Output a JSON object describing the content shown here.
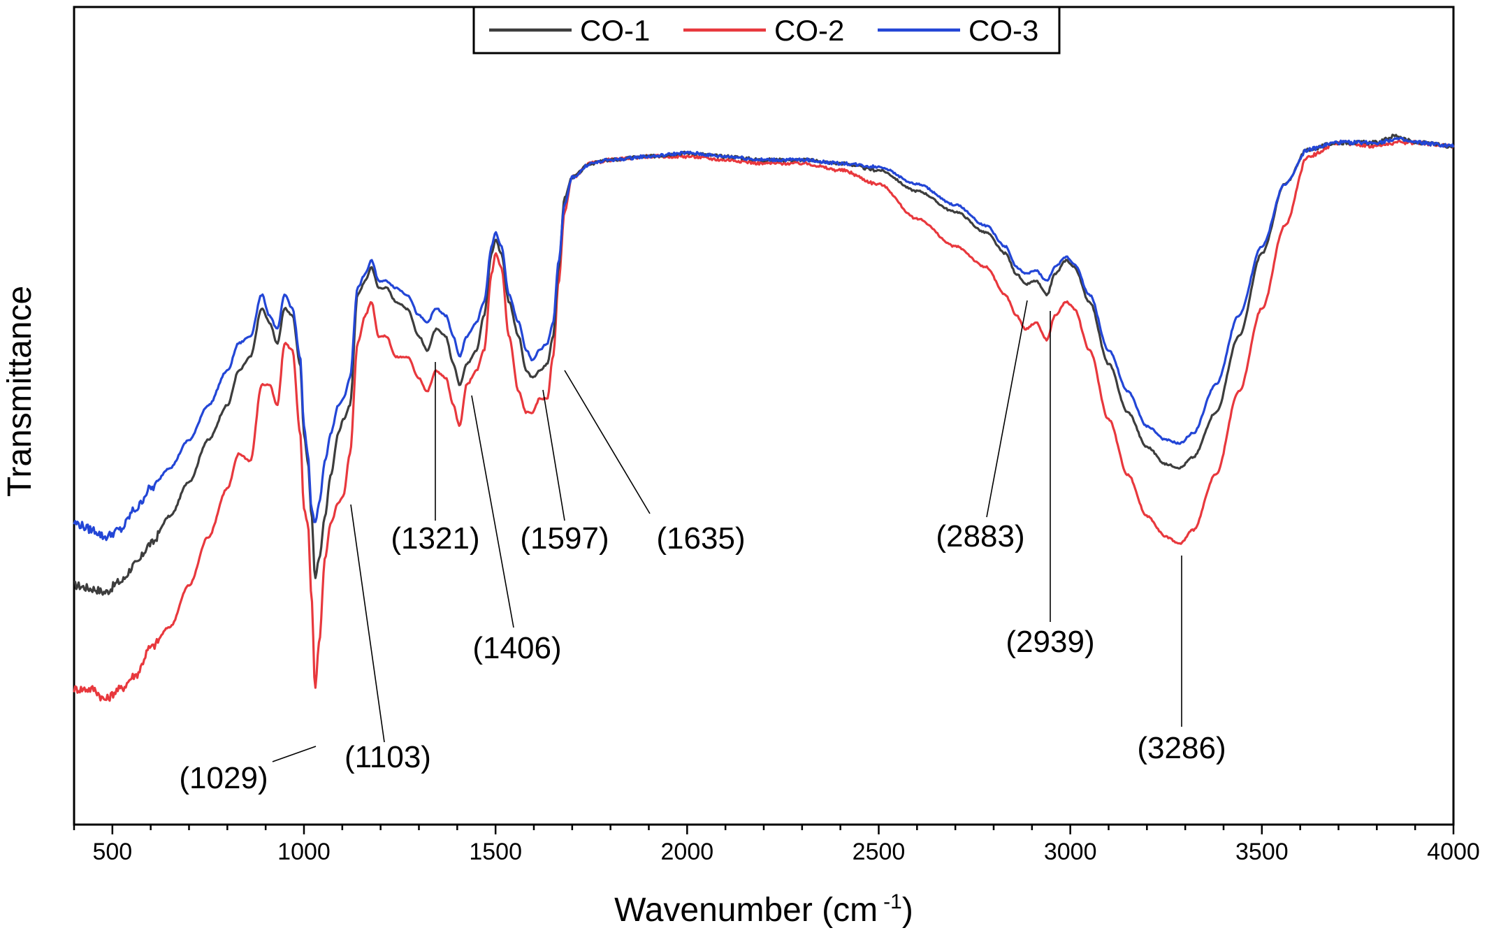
{
  "chart_data": {
    "type": "line",
    "title": "",
    "xlabel": "Wavenumber (cm",
    "xlabel_sup": "-1",
    "xlabel_close": ")",
    "ylabel": "Transmittance",
    "xlim": [
      400,
      4000
    ],
    "ylim": [
      0,
      100
    ],
    "x_ticks": [
      500,
      1000,
      1500,
      2000,
      2500,
      3000,
      3500,
      4000
    ],
    "x_tick_labels": [
      "500",
      "1000",
      "1500",
      "2000",
      "2500",
      "3000",
      "3500",
      "4000"
    ],
    "y_tick_labels": false,
    "grid": false,
    "legend_position": "top-center",
    "series": [
      {
        "name": "CO-1",
        "color": "#3d3d3d",
        "points": [
          [
            400,
            26
          ],
          [
            450,
            25.5
          ],
          [
            480,
            25
          ],
          [
            520,
            26.5
          ],
          [
            560,
            29
          ],
          [
            600,
            32
          ],
          [
            650,
            36
          ],
          [
            700,
            41
          ],
          [
            750,
            47
          ],
          [
            800,
            52
          ],
          [
            830,
            57
          ],
          [
            860,
            59
          ],
          [
            890,
            66
          ],
          [
            910,
            64
          ],
          [
            930,
            61
          ],
          [
            950,
            66
          ],
          [
            970,
            65
          ],
          [
            990,
            58
          ],
          [
            1000,
            48
          ],
          [
            1010,
            44
          ],
          [
            1020,
            36
          ],
          [
            1029,
            27
          ],
          [
            1040,
            30
          ],
          [
            1055,
            36
          ],
          [
            1070,
            42
          ],
          [
            1090,
            48
          ],
          [
            1103,
            50
          ],
          [
            1120,
            52
          ],
          [
            1140,
            68
          ],
          [
            1160,
            70
          ],
          [
            1176,
            72
          ],
          [
            1195,
            69
          ],
          [
            1215,
            69
          ],
          [
            1240,
            67
          ],
          [
            1270,
            66
          ],
          [
            1300,
            62
          ],
          [
            1321,
            60
          ],
          [
            1345,
            63
          ],
          [
            1370,
            62
          ],
          [
            1390,
            58
          ],
          [
            1406,
            55
          ],
          [
            1425,
            58
          ],
          [
            1450,
            60
          ],
          [
            1470,
            65
          ],
          [
            1490,
            74
          ],
          [
            1500,
            76
          ],
          [
            1515,
            74
          ],
          [
            1535,
            67
          ],
          [
            1560,
            62
          ],
          [
            1580,
            57
          ],
          [
            1597,
            56
          ],
          [
            1615,
            57
          ],
          [
            1635,
            58
          ],
          [
            1650,
            62
          ],
          [
            1665,
            72
          ],
          [
            1680,
            82
          ],
          [
            1700,
            85
          ],
          [
            1750,
            87
          ],
          [
            1800,
            87.5
          ],
          [
            1900,
            88
          ],
          [
            2000,
            88.5
          ],
          [
            2100,
            88
          ],
          [
            2200,
            87.5
          ],
          [
            2300,
            87.5
          ],
          [
            2400,
            87
          ],
          [
            2500,
            86
          ],
          [
            2600,
            83
          ],
          [
            2700,
            80
          ],
          [
            2780,
            77
          ],
          [
            2830,
            74
          ],
          [
            2860,
            71
          ],
          [
            2883,
            69.5
          ],
          [
            2910,
            70
          ],
          [
            2939,
            68
          ],
          [
            2960,
            71
          ],
          [
            2990,
            73
          ],
          [
            3010,
            72
          ],
          [
            3050,
            67
          ],
          [
            3100,
            58
          ],
          [
            3150,
            51
          ],
          [
            3200,
            46
          ],
          [
            3250,
            43.5
          ],
          [
            3286,
            43
          ],
          [
            3320,
            44.5
          ],
          [
            3380,
            51
          ],
          [
            3440,
            62
          ],
          [
            3500,
            74
          ],
          [
            3560,
            84
          ],
          [
            3620,
            89
          ],
          [
            3700,
            90
          ],
          [
            3800,
            90
          ],
          [
            3850,
            91
          ],
          [
            3900,
            90
          ],
          [
            4000,
            89.5
          ]
        ]
      },
      {
        "name": "CO-2",
        "color": "#e8383d",
        "points": [
          [
            400,
            11
          ],
          [
            450,
            11
          ],
          [
            480,
            9.5
          ],
          [
            520,
            11
          ],
          [
            560,
            13
          ],
          [
            600,
            17
          ],
          [
            650,
            20
          ],
          [
            700,
            26
          ],
          [
            750,
            33
          ],
          [
            800,
            40
          ],
          [
            830,
            45
          ],
          [
            860,
            44
          ],
          [
            890,
            55
          ],
          [
            910,
            55
          ],
          [
            930,
            52
          ],
          [
            950,
            61
          ],
          [
            970,
            60
          ],
          [
            990,
            48
          ],
          [
            1000,
            37
          ],
          [
            1010,
            35
          ],
          [
            1020,
            24
          ],
          [
            1029,
            11
          ],
          [
            1040,
            18
          ],
          [
            1055,
            30
          ],
          [
            1070,
            35
          ],
          [
            1090,
            38
          ],
          [
            1103,
            39
          ],
          [
            1120,
            45
          ],
          [
            1140,
            61
          ],
          [
            1160,
            65
          ],
          [
            1176,
            67
          ],
          [
            1195,
            62
          ],
          [
            1215,
            62
          ],
          [
            1240,
            59
          ],
          [
            1270,
            59
          ],
          [
            1300,
            56
          ],
          [
            1321,
            54
          ],
          [
            1345,
            57
          ],
          [
            1370,
            56
          ],
          [
            1390,
            52
          ],
          [
            1406,
            49
          ],
          [
            1425,
            55
          ],
          [
            1450,
            57
          ],
          [
            1470,
            60
          ],
          [
            1490,
            71
          ],
          [
            1500,
            74
          ],
          [
            1515,
            72
          ],
          [
            1535,
            62
          ],
          [
            1560,
            54
          ],
          [
            1580,
            51
          ],
          [
            1597,
            51
          ],
          [
            1615,
            53
          ],
          [
            1635,
            53
          ],
          [
            1650,
            59
          ],
          [
            1665,
            70
          ],
          [
            1680,
            80
          ],
          [
            1700,
            85
          ],
          [
            1750,
            87
          ],
          [
            1800,
            87.5
          ],
          [
            1900,
            88
          ],
          [
            2000,
            88
          ],
          [
            2100,
            87.5
          ],
          [
            2200,
            87
          ],
          [
            2300,
            87
          ],
          [
            2400,
            86
          ],
          [
            2500,
            84
          ],
          [
            2600,
            79
          ],
          [
            2700,
            75
          ],
          [
            2780,
            72
          ],
          [
            2830,
            68
          ],
          [
            2860,
            65
          ],
          [
            2883,
            63
          ],
          [
            2910,
            64
          ],
          [
            2939,
            61.5
          ],
          [
            2960,
            65
          ],
          [
            2990,
            67
          ],
          [
            3010,
            66
          ],
          [
            3050,
            60
          ],
          [
            3100,
            50
          ],
          [
            3150,
            42
          ],
          [
            3200,
            36
          ],
          [
            3250,
            33
          ],
          [
            3286,
            32
          ],
          [
            3320,
            34
          ],
          [
            3380,
            42
          ],
          [
            3440,
            54
          ],
          [
            3500,
            66
          ],
          [
            3560,
            78
          ],
          [
            3620,
            88
          ],
          [
            3700,
            90
          ],
          [
            3800,
            89.5
          ],
          [
            3850,
            90
          ],
          [
            3900,
            90
          ],
          [
            4000,
            89.5
          ]
        ]
      },
      {
        "name": "CO-3",
        "color": "#2346d6",
        "points": [
          [
            400,
            35
          ],
          [
            450,
            34
          ],
          [
            480,
            33
          ],
          [
            520,
            34
          ],
          [
            560,
            37
          ],
          [
            600,
            40
          ],
          [
            650,
            43
          ],
          [
            700,
            47
          ],
          [
            750,
            52
          ],
          [
            800,
            57
          ],
          [
            830,
            61
          ],
          [
            860,
            62
          ],
          [
            890,
            68
          ],
          [
            910,
            65
          ],
          [
            930,
            63
          ],
          [
            950,
            68
          ],
          [
            970,
            66
          ],
          [
            990,
            59
          ],
          [
            1000,
            49
          ],
          [
            1010,
            45
          ],
          [
            1020,
            37
          ],
          [
            1029,
            35
          ],
          [
            1040,
            38
          ],
          [
            1055,
            44
          ],
          [
            1070,
            48
          ],
          [
            1090,
            52
          ],
          [
            1103,
            53
          ],
          [
            1120,
            56
          ],
          [
            1140,
            69
          ],
          [
            1160,
            71
          ],
          [
            1176,
            73
          ],
          [
            1195,
            70
          ],
          [
            1215,
            70
          ],
          [
            1240,
            69
          ],
          [
            1270,
            68
          ],
          [
            1300,
            65
          ],
          [
            1321,
            64
          ],
          [
            1345,
            66
          ],
          [
            1370,
            65
          ],
          [
            1390,
            62
          ],
          [
            1406,
            59
          ],
          [
            1425,
            62
          ],
          [
            1450,
            64
          ],
          [
            1470,
            67
          ],
          [
            1490,
            75
          ],
          [
            1500,
            77
          ],
          [
            1515,
            75
          ],
          [
            1535,
            68
          ],
          [
            1560,
            64
          ],
          [
            1580,
            60
          ],
          [
            1597,
            58.5
          ],
          [
            1615,
            60
          ],
          [
            1635,
            61
          ],
          [
            1650,
            64
          ],
          [
            1665,
            73
          ],
          [
            1680,
            81
          ],
          [
            1700,
            85
          ],
          [
            1750,
            87
          ],
          [
            1800,
            87.5
          ],
          [
            1900,
            88
          ],
          [
            2000,
            88.5
          ],
          [
            2100,
            88
          ],
          [
            2200,
            87.5
          ],
          [
            2300,
            87.5
          ],
          [
            2400,
            87
          ],
          [
            2500,
            86.5
          ],
          [
            2600,
            84
          ],
          [
            2700,
            81
          ],
          [
            2780,
            78
          ],
          [
            2830,
            75
          ],
          [
            2860,
            72
          ],
          [
            2883,
            71
          ],
          [
            2910,
            71.5
          ],
          [
            2939,
            70
          ],
          [
            2960,
            72
          ],
          [
            2990,
            73.5
          ],
          [
            3010,
            72.5
          ],
          [
            3050,
            68
          ],
          [
            3100,
            60
          ],
          [
            3150,
            54
          ],
          [
            3200,
            49
          ],
          [
            3250,
            47
          ],
          [
            3286,
            46.5
          ],
          [
            3320,
            48
          ],
          [
            3380,
            55
          ],
          [
            3440,
            65
          ],
          [
            3500,
            75
          ],
          [
            3560,
            84
          ],
          [
            3620,
            89
          ],
          [
            3700,
            90
          ],
          [
            3800,
            90
          ],
          [
            3850,
            90.5
          ],
          [
            3900,
            90
          ],
          [
            4000,
            89.5
          ]
        ]
      }
    ],
    "annotations": [
      {
        "label": "(1029)",
        "x": 1029,
        "series": "CO-2"
      },
      {
        "label": "(1103)",
        "x": 1103,
        "series": "CO-2"
      },
      {
        "label": "(1321)",
        "x": 1321,
        "series": "CO-2"
      },
      {
        "label": "(1406)",
        "x": 1406,
        "series": "CO-2"
      },
      {
        "label": "(1597)",
        "x": 1597,
        "series": "CO-2"
      },
      {
        "label": "(1635)",
        "x": 1635,
        "series": "CO-2"
      },
      {
        "label": "(2883)",
        "x": 2883,
        "series": "CO-2"
      },
      {
        "label": "(2939)",
        "x": 2939,
        "series": "CO-2"
      },
      {
        "label": "(3286)",
        "x": 3286,
        "series": "CO-2"
      }
    ]
  }
}
